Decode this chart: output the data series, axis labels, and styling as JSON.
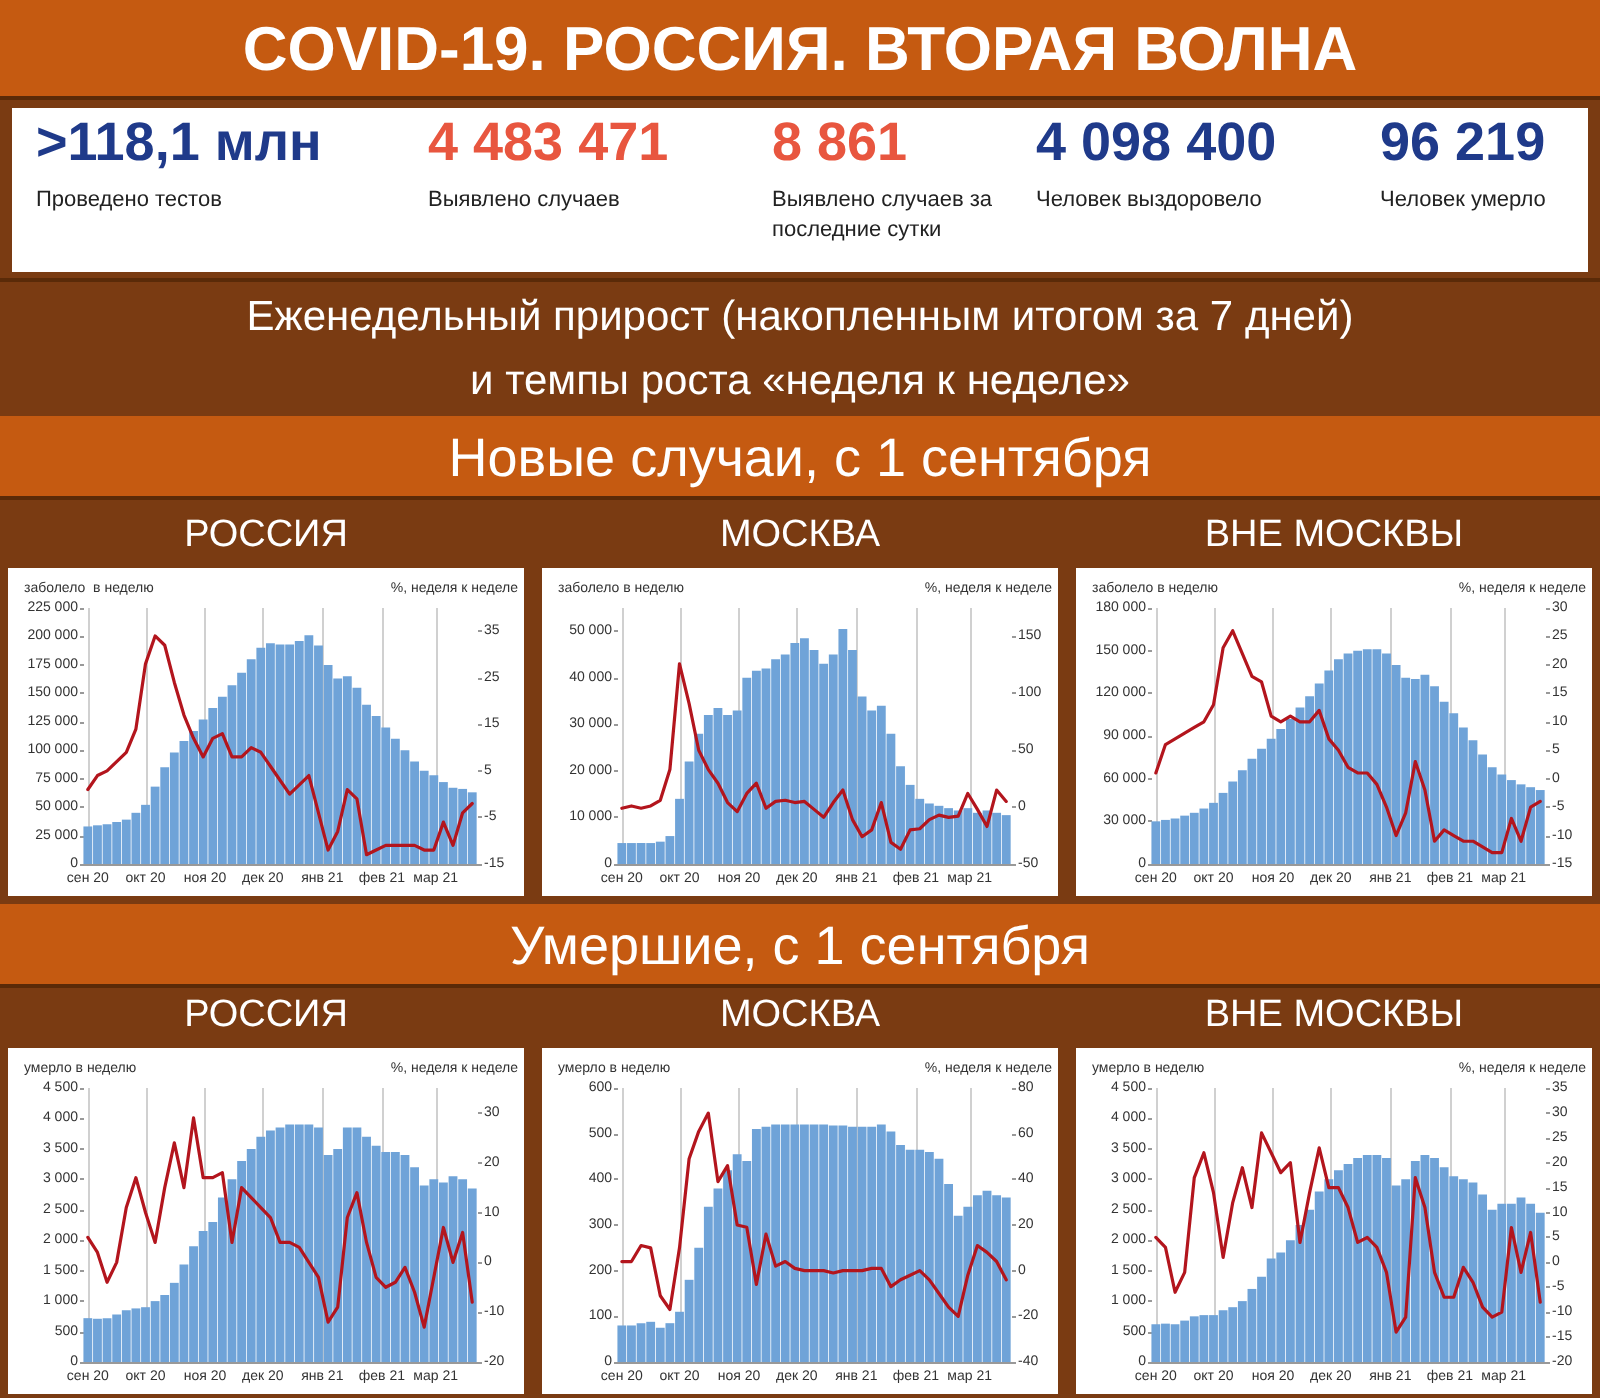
{
  "chart_data": [
    {
      "type": "other",
      "title": "COVID-19. РОССИЯ. ВТОРАЯ ВОЛНА",
      "subtitle": "Еженедельный прирост (накопленным итогом за 7 дней) и темпы роста «неделя к неделе»",
      "annotations": [
        ">118,1 млн",
        "Проведено тестов",
        "4 483 471",
        "Выявлено случаев",
        "8 861",
        "Выявлено случаев за последние сутки",
        "4 098 400",
        "Человек выздоровело",
        "96 219",
        "Человек умерло"
      ]
    },
    {
      "type": "other",
      "title": "Новые случаи, с 1 сентября"
    },
    {
      "type": "bar",
      "title": "РОССИЯ",
      "ylabel": "заболело  в неделю",
      "y2label": "%, неделя к неделе",
      "grid": "x",
      "x": [
        "2020-09-01",
        "2020-09-06",
        "2020-09-11",
        "2020-09-16",
        "2020-09-21",
        "2020-09-26",
        "2020-10-01",
        "2020-10-06",
        "2020-10-11",
        "2020-10-16",
        "2020-10-21",
        "2020-10-26",
        "2020-10-31",
        "2020-11-05",
        "2020-11-10",
        "2020-11-15",
        "2020-11-20",
        "2020-11-25",
        "2020-11-30",
        "2020-12-05",
        "2020-12-10",
        "2020-12-15",
        "2020-12-20",
        "2020-12-25",
        "2020-12-30",
        "2021-01-04",
        "2021-01-09",
        "2021-01-14",
        "2021-01-19",
        "2021-01-24",
        "2021-01-29",
        "2021-02-03",
        "2021-02-08",
        "2021-02-13",
        "2021-02-18",
        "2021-02-23",
        "2021-02-28",
        "2021-03-05",
        "2021-03-10",
        "2021-03-15",
        "2021-03-20"
      ],
      "xlim": [
        "2020-08-30",
        "2021-03-23"
      ],
      "xticks": [
        {
          "value": "2020-09-01",
          "label": "сен 20"
        },
        {
          "value": "2020-10-01",
          "label": "окт 20"
        },
        {
          "value": "2020-11-01",
          "label": "ноя 20"
        },
        {
          "value": "2020-12-01",
          "label": "дек 20"
        },
        {
          "value": "2021-01-01",
          "label": "янв 21"
        },
        {
          "value": "2021-02-01",
          "label": "фев 21"
        },
        {
          "value": "2021-03-01",
          "label": "мар 21"
        }
      ],
      "ylim": [
        0,
        225000
      ],
      "yticks": [
        0,
        {
          "value": 25000,
          "label": "25 000"
        },
        {
          "value": 50000,
          "label": "50 000"
        },
        {
          "value": 75000,
          "label": "75 000"
        },
        {
          "value": 100000,
          "label": "100 000"
        },
        {
          "value": 125000,
          "label": "125 000"
        },
        {
          "value": 150000,
          "label": "150 000"
        },
        {
          "value": 175000,
          "label": "175 000"
        },
        {
          "value": 200000,
          "label": "200 000"
        },
        {
          "value": 225000,
          "label": "225 000"
        }
      ],
      "y2lim": [
        -15,
        40
      ],
      "y2ticks": [
        -15,
        -5,
        5,
        15,
        25,
        35
      ],
      "series": [
        {
          "type": "bar",
          "color": "#6fa3d8",
          "values": [
            33000,
            34000,
            35000,
            37000,
            39000,
            45000,
            52000,
            68000,
            85000,
            98000,
            108000,
            117000,
            127000,
            137000,
            147000,
            157000,
            168000,
            180000,
            190000,
            194000,
            193000,
            193000,
            196000,
            201000,
            192000,
            175000,
            163000,
            165000,
            155000,
            140000,
            130000,
            120000,
            110000,
            100000,
            90000,
            82000,
            78000,
            72000,
            67000,
            66000,
            63000
          ]
        },
        {
          "type": "line",
          "axis": "y2",
          "color": "#b3151d",
          "values": [
            1,
            4,
            5,
            7,
            9,
            14,
            28,
            34,
            32,
            24,
            17,
            12,
            8,
            12,
            13,
            8,
            8,
            10,
            9,
            6,
            3,
            0,
            2,
            4,
            -4,
            -12,
            -8,
            1,
            -1,
            -13,
            -12,
            -11,
            -11,
            -11,
            -11,
            -12,
            -12,
            -6,
            -11,
            -4,
            -2
          ]
        }
      ]
    },
    {
      "type": "bar",
      "title": "МОСКВА",
      "ylabel": "заболело в неделю",
      "y2label": "%, неделя к неделе",
      "grid": "x",
      "x": [
        "2020-09-01",
        "2020-09-06",
        "2020-09-11",
        "2020-09-16",
        "2020-09-21",
        "2020-09-26",
        "2020-10-01",
        "2020-10-06",
        "2020-10-11",
        "2020-10-16",
        "2020-10-21",
        "2020-10-26",
        "2020-10-31",
        "2020-11-05",
        "2020-11-10",
        "2020-11-15",
        "2020-11-20",
        "2020-11-25",
        "2020-11-30",
        "2020-12-05",
        "2020-12-10",
        "2020-12-15",
        "2020-12-20",
        "2020-12-25",
        "2020-12-30",
        "2021-01-04",
        "2021-01-09",
        "2021-01-14",
        "2021-01-19",
        "2021-01-24",
        "2021-01-29",
        "2021-02-03",
        "2021-02-08",
        "2021-02-13",
        "2021-02-18",
        "2021-02-23",
        "2021-02-28",
        "2021-03-05",
        "2021-03-10",
        "2021-03-15",
        "2021-03-20"
      ],
      "xlim": [
        "2020-08-30",
        "2021-03-23"
      ],
      "xticks": [
        {
          "value": "2020-09-01",
          "label": "сен 20"
        },
        {
          "value": "2020-10-01",
          "label": "окт 20"
        },
        {
          "value": "2020-11-01",
          "label": "ноя 20"
        },
        {
          "value": "2020-12-01",
          "label": "дек 20"
        },
        {
          "value": "2021-01-01",
          "label": "янв 21"
        },
        {
          "value": "2021-02-01",
          "label": "фев 21"
        },
        {
          "value": "2021-03-01",
          "label": "мар 21"
        }
      ],
      "ylim": [
        0,
        55000
      ],
      "yticks": [
        0,
        {
          "value": 10000,
          "label": "10 000"
        },
        {
          "value": 20000,
          "label": "20 000"
        },
        {
          "value": 30000,
          "label": "30 000"
        },
        {
          "value": 40000,
          "label": "40 000"
        },
        {
          "value": 50000,
          "label": "50 000"
        }
      ],
      "y2lim": [
        -50,
        175
      ],
      "y2ticks": [
        -50,
        0,
        50,
        100,
        150
      ],
      "series": [
        {
          "type": "bar",
          "color": "#6fa3d8",
          "values": [
            4500,
            4500,
            4500,
            4500,
            4800,
            6000,
            14000,
            22000,
            28000,
            32000,
            33500,
            32000,
            33000,
            40000,
            41500,
            42000,
            44000,
            45000,
            47500,
            48500,
            46000,
            43000,
            45000,
            50500,
            46000,
            36000,
            33000,
            34000,
            28000,
            21000,
            17000,
            14000,
            13000,
            12500,
            12000,
            11500,
            12000,
            11000,
            11500,
            11000,
            10500
          ]
        },
        {
          "type": "line",
          "axis": "y2",
          "color": "#b3151d",
          "values": [
            -1,
            1,
            -1,
            1,
            6,
            33,
            126,
            91,
            50,
            33,
            21,
            4,
            -4,
            12,
            21,
            -1,
            5,
            6,
            4,
            5,
            -2,
            -9,
            4,
            15,
            -11,
            -26,
            -20,
            4,
            -31,
            -37,
            -20,
            -19,
            -11,
            -7,
            -9,
            -8,
            12,
            -2,
            -17,
            15,
            5
          ]
        }
      ]
    },
    {
      "type": "bar",
      "title": "ВНЕ МОСКВЫ",
      "ylabel": "заболело в неделю",
      "y2label": "%, неделя к неделе",
      "grid": "x",
      "x": [
        "2020-09-01",
        "2020-09-06",
        "2020-09-11",
        "2020-09-16",
        "2020-09-21",
        "2020-09-26",
        "2020-10-01",
        "2020-10-06",
        "2020-10-11",
        "2020-10-16",
        "2020-10-21",
        "2020-10-26",
        "2020-10-31",
        "2020-11-05",
        "2020-11-10",
        "2020-11-15",
        "2020-11-20",
        "2020-11-25",
        "2020-11-30",
        "2020-12-05",
        "2020-12-10",
        "2020-12-15",
        "2020-12-20",
        "2020-12-25",
        "2020-12-30",
        "2021-01-04",
        "2021-01-09",
        "2021-01-14",
        "2021-01-19",
        "2021-01-24",
        "2021-01-29",
        "2021-02-03",
        "2021-02-08",
        "2021-02-13",
        "2021-02-18",
        "2021-02-23",
        "2021-02-28",
        "2021-03-05",
        "2021-03-10",
        "2021-03-15",
        "2021-03-20"
      ],
      "xlim": [
        "2020-08-30",
        "2021-03-23"
      ],
      "xticks": [
        {
          "value": "2020-09-01",
          "label": "сен 20"
        },
        {
          "value": "2020-10-01",
          "label": "окт 20"
        },
        {
          "value": "2020-11-01",
          "label": "ноя 20"
        },
        {
          "value": "2020-12-01",
          "label": "дек 20"
        },
        {
          "value": "2021-01-01",
          "label": "янв 21"
        },
        {
          "value": "2021-02-01",
          "label": "фев 21"
        },
        {
          "value": "2021-03-01",
          "label": "мар 21"
        }
      ],
      "ylim": [
        0,
        180000
      ],
      "yticks": [
        0,
        {
          "value": 30000,
          "label": "30 000"
        },
        {
          "value": 60000,
          "label": "60 000"
        },
        {
          "value": 90000,
          "label": "90 000"
        },
        {
          "value": 120000,
          "label": "120 000"
        },
        {
          "value": 150000,
          "label": "150 000"
        },
        {
          "value": 180000,
          "label": "180 000"
        }
      ],
      "y2lim": [
        -15,
        30
      ],
      "y2ticks": [
        -15,
        -10,
        -5,
        0,
        5,
        10,
        15,
        20,
        25,
        30
      ],
      "series": [
        {
          "type": "bar",
          "color": "#6fa3d8",
          "values": [
            30000,
            31000,
            32000,
            34000,
            36000,
            39000,
            43000,
            50000,
            58000,
            66000,
            74000,
            81000,
            88000,
            95000,
            102000,
            110000,
            118000,
            127000,
            136000,
            144000,
            148000,
            150000,
            151000,
            151000,
            148000,
            140000,
            131000,
            130000,
            133000,
            125000,
            114000,
            106000,
            96000,
            87000,
            77000,
            68000,
            63000,
            59000,
            56000,
            54000,
            52000
          ]
        },
        {
          "type": "line",
          "axis": "y2",
          "color": "#b3151d",
          "values": [
            1,
            6,
            7,
            8,
            9,
            10,
            13,
            23,
            26,
            22,
            18,
            17,
            11,
            10,
            11,
            10,
            10,
            12,
            7,
            5,
            2,
            1,
            1,
            -1,
            -5,
            -10,
            -6,
            3,
            -2,
            -11,
            -9,
            -10,
            -11,
            -11,
            -12,
            -13,
            -13,
            -7,
            -11,
            -5,
            -4
          ]
        }
      ]
    },
    {
      "type": "other",
      "title": "Умершие, с 1 сентября"
    },
    {
      "type": "bar",
      "title": "РОССИЯ",
      "ylabel": "умерло в неделю",
      "y2label": "%, неделя к неделе",
      "grid": "x",
      "x": [
        "2020-09-01",
        "2020-09-06",
        "2020-09-11",
        "2020-09-16",
        "2020-09-21",
        "2020-09-26",
        "2020-10-01",
        "2020-10-06",
        "2020-10-11",
        "2020-10-16",
        "2020-10-21",
        "2020-10-26",
        "2020-10-31",
        "2020-11-05",
        "2020-11-10",
        "2020-11-15",
        "2020-11-20",
        "2020-11-25",
        "2020-11-30",
        "2020-12-05",
        "2020-12-10",
        "2020-12-15",
        "2020-12-20",
        "2020-12-25",
        "2020-12-30",
        "2021-01-04",
        "2021-01-09",
        "2021-01-14",
        "2021-01-19",
        "2021-01-24",
        "2021-01-29",
        "2021-02-03",
        "2021-02-08",
        "2021-02-13",
        "2021-02-18",
        "2021-02-23",
        "2021-02-28",
        "2021-03-05",
        "2021-03-10",
        "2021-03-15",
        "2021-03-20"
      ],
      "xlim": [
        "2020-08-30",
        "2021-03-23"
      ],
      "xticks": [
        {
          "value": "2020-09-01",
          "label": "сен 20"
        },
        {
          "value": "2020-10-01",
          "label": "окт 20"
        },
        {
          "value": "2020-11-01",
          "label": "ноя 20"
        },
        {
          "value": "2020-12-01",
          "label": "дек 20"
        },
        {
          "value": "2021-01-01",
          "label": "янв 21"
        },
        {
          "value": "2021-02-01",
          "label": "фев 21"
        },
        {
          "value": "2021-03-01",
          "label": "мар 21"
        }
      ],
      "ylim": [
        0,
        4500
      ],
      "yticks": [
        0,
        500,
        {
          "value": 1000,
          "label": "1 000"
        },
        {
          "value": 1500,
          "label": "1 500"
        },
        {
          "value": 2000,
          "label": "2 000"
        },
        {
          "value": 2500,
          "label": "2 500"
        },
        {
          "value": 3000,
          "label": "3 000"
        },
        {
          "value": 3500,
          "label": "3 500"
        },
        {
          "value": 4000,
          "label": "4 000"
        },
        {
          "value": 4500,
          "label": "4 500"
        }
      ],
      "y2lim": [
        -20,
        35
      ],
      "y2ticks": [
        -20,
        -10,
        0,
        10,
        20,
        30
      ],
      "series": [
        {
          "type": "bar",
          "color": "#6fa3d8",
          "values": [
            720,
            710,
            720,
            780,
            850,
            880,
            900,
            1000,
            1100,
            1300,
            1600,
            1900,
            2150,
            2300,
            2700,
            3000,
            3300,
            3500,
            3700,
            3800,
            3850,
            3900,
            3900,
            3900,
            3850,
            3400,
            3500,
            3850,
            3850,
            3700,
            3550,
            3450,
            3450,
            3400,
            3200,
            2900,
            3000,
            2950,
            3050,
            3000,
            2850
          ]
        },
        {
          "type": "line",
          "axis": "y2",
          "color": "#b3151d",
          "values": [
            5,
            2,
            -4,
            0,
            11,
            17,
            10,
            4,
            15,
            24,
            15,
            29,
            17,
            17,
            18,
            4,
            15,
            13,
            11,
            9,
            4,
            4,
            3,
            0,
            -3,
            -12,
            -9,
            9,
            14,
            4,
            -3,
            -5,
            -4,
            -1,
            -6,
            -13,
            -3,
            7,
            0,
            6,
            -8
          ]
        }
      ]
    },
    {
      "type": "bar",
      "title": "МОСКВА",
      "ylabel": "умерло в неделю",
      "y2label": "%, неделя к неделе",
      "grid": "x",
      "x": [
        "2020-09-01",
        "2020-09-06",
        "2020-09-11",
        "2020-09-16",
        "2020-09-21",
        "2020-09-26",
        "2020-10-01",
        "2020-10-06",
        "2020-10-11",
        "2020-10-16",
        "2020-10-21",
        "2020-10-26",
        "2020-10-31",
        "2020-11-05",
        "2020-11-10",
        "2020-11-15",
        "2020-11-20",
        "2020-11-25",
        "2020-11-30",
        "2020-12-05",
        "2020-12-10",
        "2020-12-15",
        "2020-12-20",
        "2020-12-25",
        "2020-12-30",
        "2021-01-04",
        "2021-01-09",
        "2021-01-14",
        "2021-01-19",
        "2021-01-24",
        "2021-01-29",
        "2021-02-03",
        "2021-02-08",
        "2021-02-13",
        "2021-02-18",
        "2021-02-23",
        "2021-02-28",
        "2021-03-05",
        "2021-03-10",
        "2021-03-15",
        "2021-03-20"
      ],
      "xlim": [
        "2020-08-30",
        "2021-03-23"
      ],
      "xticks": [
        {
          "value": "2020-09-01",
          "label": "сен 20"
        },
        {
          "value": "2020-10-01",
          "label": "окт 20"
        },
        {
          "value": "2020-11-01",
          "label": "ноя 20"
        },
        {
          "value": "2020-12-01",
          "label": "дек 20"
        },
        {
          "value": "2021-01-01",
          "label": "янв 21"
        },
        {
          "value": "2021-02-01",
          "label": "фев 21"
        },
        {
          "value": "2021-03-01",
          "label": "мар 21"
        }
      ],
      "ylim": [
        0,
        600
      ],
      "yticks": [
        0,
        100,
        200,
        300,
        400,
        500,
        600
      ],
      "y2lim": [
        -40,
        80
      ],
      "y2ticks": [
        -40,
        -20,
        0,
        20,
        40,
        60,
        80
      ],
      "series": [
        {
          "type": "bar",
          "color": "#6fa3d8",
          "values": [
            80,
            80,
            85,
            88,
            75,
            85,
            110,
            180,
            250,
            340,
            380,
            420,
            455,
            440,
            510,
            515,
            520,
            520,
            520,
            520,
            520,
            520,
            518,
            518,
            515,
            515,
            515,
            520,
            505,
            475,
            465,
            465,
            460,
            445,
            390,
            320,
            340,
            365,
            375,
            365,
            360
          ]
        },
        {
          "type": "line",
          "axis": "y2",
          "color": "#b3151d",
          "values": [
            4,
            4,
            11,
            10,
            -11,
            -17,
            10,
            49,
            61,
            69,
            39,
            46,
            20,
            19,
            -6,
            16,
            2,
            4,
            1,
            0,
            0,
            0,
            -1,
            0,
            0,
            0,
            1,
            1,
            -7,
            -4,
            -2,
            0,
            -4,
            -10,
            -16,
            -20,
            -2,
            11,
            8,
            4,
            -4
          ]
        }
      ]
    },
    {
      "type": "bar",
      "title": "ВНЕ МОСКВЫ",
      "ylabel": "умерло в неделю",
      "y2label": "%, неделя к неделе",
      "grid": "x",
      "x": [
        "2020-09-01",
        "2020-09-06",
        "2020-09-11",
        "2020-09-16",
        "2020-09-21",
        "2020-09-26",
        "2020-10-01",
        "2020-10-06",
        "2020-10-11",
        "2020-10-16",
        "2020-10-21",
        "2020-10-26",
        "2020-10-31",
        "2020-11-05",
        "2020-11-10",
        "2020-11-15",
        "2020-11-20",
        "2020-11-25",
        "2020-11-30",
        "2020-12-05",
        "2020-12-10",
        "2020-12-15",
        "2020-12-20",
        "2020-12-25",
        "2020-12-30",
        "2021-01-04",
        "2021-01-09",
        "2021-01-14",
        "2021-01-19",
        "2021-01-24",
        "2021-01-29",
        "2021-02-03",
        "2021-02-08",
        "2021-02-13",
        "2021-02-18",
        "2021-02-23",
        "2021-02-28",
        "2021-03-05",
        "2021-03-10",
        "2021-03-15",
        "2021-03-20"
      ],
      "xlim": [
        "2020-08-30",
        "2021-03-23"
      ],
      "xticks": [
        {
          "value": "2020-09-01",
          "label": "сен 20"
        },
        {
          "value": "2020-10-01",
          "label": "окт 20"
        },
        {
          "value": "2020-11-01",
          "label": "ноя 20"
        },
        {
          "value": "2020-12-01",
          "label": "дек 20"
        },
        {
          "value": "2021-01-01",
          "label": "янв 21"
        },
        {
          "value": "2021-02-01",
          "label": "фев 21"
        },
        {
          "value": "2021-03-01",
          "label": "мар 21"
        }
      ],
      "ylim": [
        0,
        4500
      ],
      "yticks": [
        0,
        500,
        {
          "value": 1000,
          "label": "1 000"
        },
        {
          "value": 1500,
          "label": "1 500"
        },
        {
          "value": 2000,
          "label": "2 000"
        },
        {
          "value": 2500,
          "label": "2 500"
        },
        {
          "value": 3000,
          "label": "3 000"
        },
        {
          "value": 3500,
          "label": "3 500"
        },
        {
          "value": 4000,
          "label": "4 000"
        },
        {
          "value": 4500,
          "label": "4 500"
        }
      ],
      "y2lim": [
        -20,
        35
      ],
      "y2ticks": [
        -20,
        -15,
        -10,
        -5,
        0,
        5,
        10,
        15,
        20,
        25,
        30,
        35
      ],
      "series": [
        {
          "type": "bar",
          "color": "#6fa3d8",
          "values": [
            620,
            630,
            620,
            680,
            750,
            770,
            770,
            850,
            900,
            1000,
            1200,
            1400,
            1700,
            1800,
            2000,
            2250,
            2500,
            2800,
            3000,
            3150,
            3250,
            3350,
            3400,
            3400,
            3350,
            2900,
            3000,
            3300,
            3400,
            3350,
            3200,
            3050,
            3000,
            2950,
            2750,
            2500,
            2600,
            2600,
            2700,
            2600,
            2450
          ]
        },
        {
          "type": "line",
          "axis": "y2",
          "color": "#b3151d",
          "values": [
            5,
            3,
            -6,
            -2,
            17,
            22,
            14,
            1,
            12,
            19,
            11,
            26,
            22,
            18,
            20,
            4,
            14,
            23,
            15,
            15,
            11,
            4,
            5,
            3,
            -2,
            -14,
            -11,
            17,
            11,
            -2,
            -7,
            -7,
            -1,
            -4,
            -9,
            -11,
            -10,
            7,
            -2,
            6,
            -8
          ]
        }
      ]
    }
  ]
}
